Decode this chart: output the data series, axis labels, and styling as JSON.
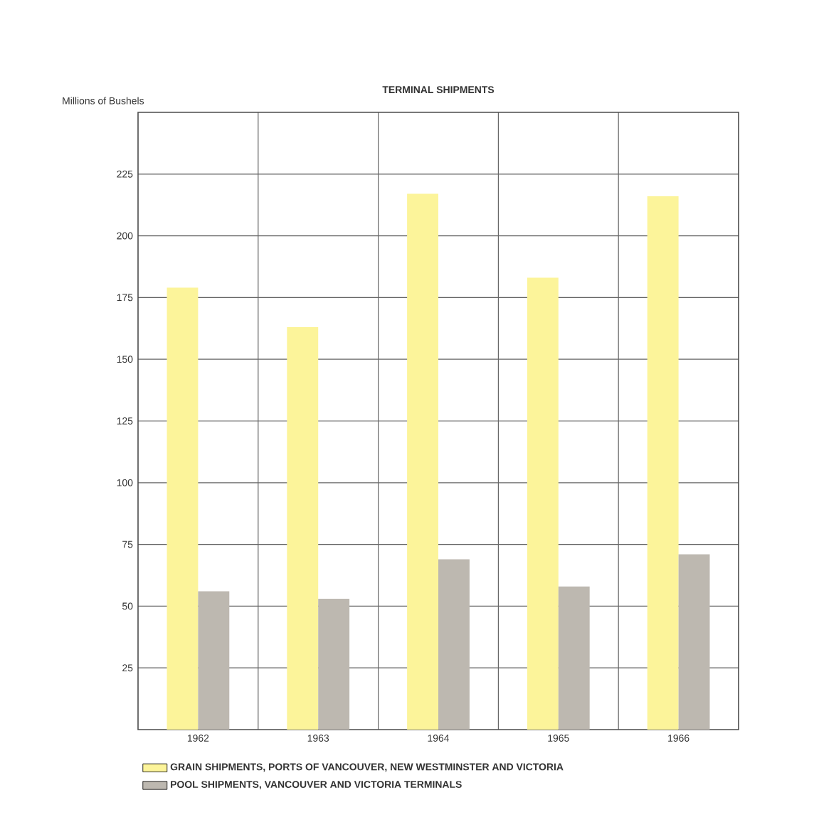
{
  "chart_data": {
    "type": "bar",
    "title": "TERMINAL SHIPMENTS",
    "ylabel": "Millions of Bushels",
    "categories": [
      "1962",
      "1963",
      "1964",
      "1965",
      "1966"
    ],
    "series": [
      {
        "name": "GRAIN SHIPMENTS, PORTS OF VANCOUVER, NEW WESTMINSTER AND VICTORIA",
        "color": "#fcf49a",
        "values": [
          179,
          163,
          217,
          183,
          216
        ]
      },
      {
        "name": "POOL SHIPMENTS, VANCOUVER AND VICTORIA TERMINALS",
        "color": "#bdb8b0",
        "values": [
          56,
          53,
          69,
          58,
          71
        ]
      }
    ],
    "ylim": [
      0,
      250
    ],
    "yticks": [
      25,
      50,
      75,
      100,
      125,
      150,
      175,
      200,
      225
    ],
    "grid": true,
    "legend": "bottom"
  }
}
